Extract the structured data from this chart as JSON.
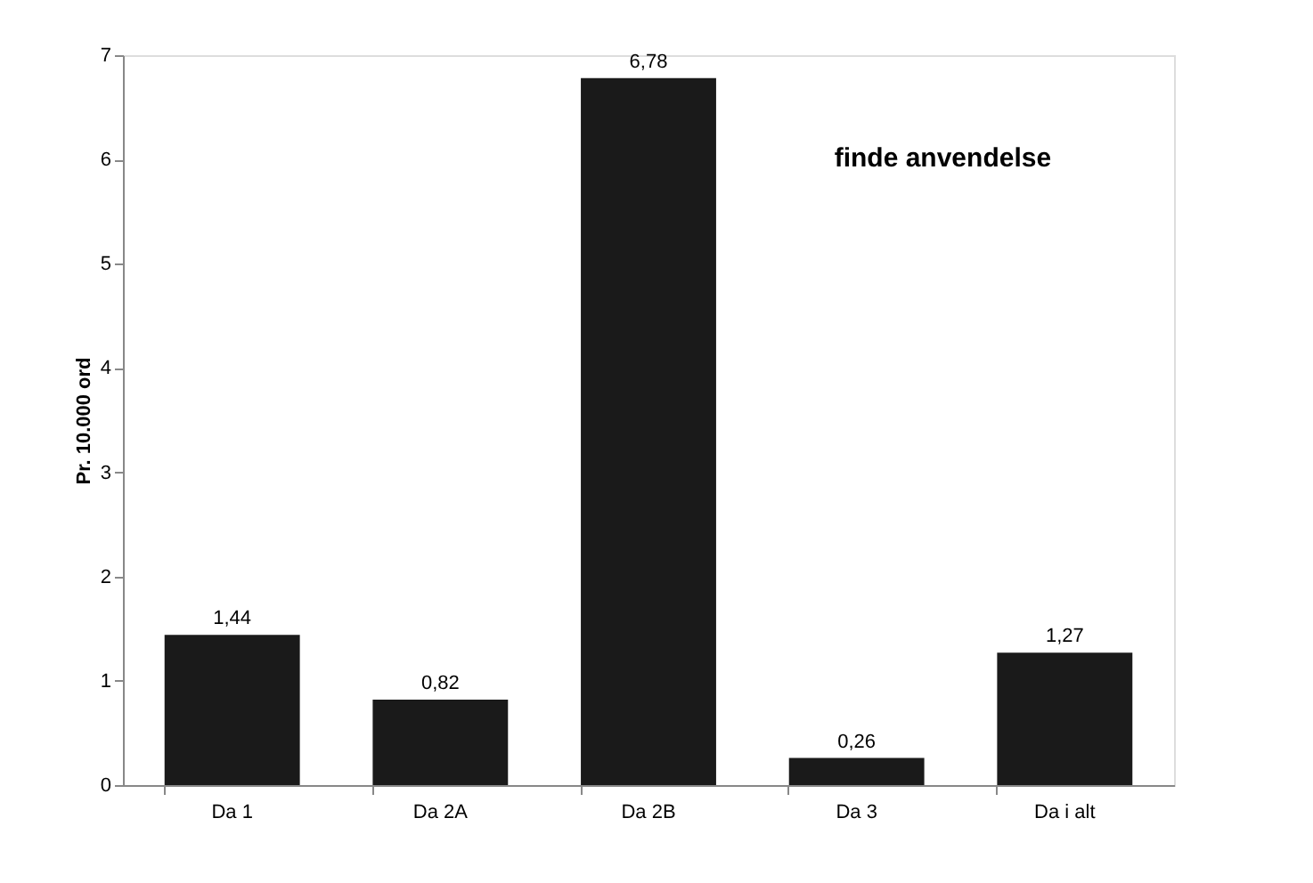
{
  "chart_data": {
    "type": "bar",
    "ylabel": "Pr. 10.000 ord",
    "categories": [
      "Da 1",
      "Da 2A",
      "Da 2B",
      "Da 3",
      "Da i alt"
    ],
    "values": [
      1.44,
      0.82,
      6.78,
      0.26,
      1.27
    ],
    "value_labels": [
      "1,44",
      "0,82",
      "6,78",
      "0,26",
      "1,27"
    ],
    "color": "#1a1a1a",
    "ylim": [
      0,
      7
    ],
    "yticks": [
      0,
      1,
      2,
      3,
      4,
      5,
      6,
      7
    ],
    "grid": false,
    "annotations": [
      "finde anvendelse"
    ]
  }
}
